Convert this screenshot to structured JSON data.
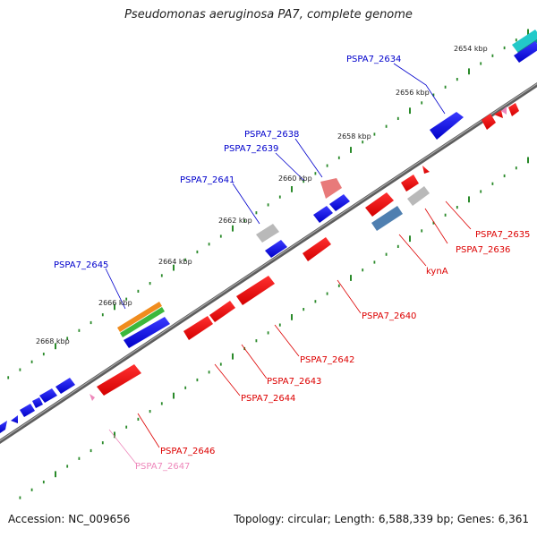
{
  "title": "Pseudomonas aeruginosa PA7, complete genome",
  "footer": {
    "accession": "Accession: NC_009656",
    "summary": "Topology: circular; Length: 6,588,339 bp; Genes: 6,361"
  },
  "colors": {
    "backbone": "#7a7a7a",
    "tick": "#2a8a2a",
    "forward_label": "#0000cc",
    "reverse_label": "#dd0000",
    "pseudo_label": "#ee88bb"
  },
  "ruler": [
    {
      "label": "2654 kbp"
    },
    {
      "label": "2656 kbp"
    },
    {
      "label": "2658 kbp"
    },
    {
      "label": "2660 kbp"
    },
    {
      "label": "2662 kbp"
    },
    {
      "label": "2664 kbp"
    },
    {
      "label": "2666 kbp"
    },
    {
      "label": "2668 kbp"
    }
  ],
  "gene_labels": [
    {
      "text": "PSPA7_2634",
      "strand": "forward"
    },
    {
      "text": "PSPA7_2638",
      "strand": "forward"
    },
    {
      "text": "PSPA7_2639",
      "strand": "forward"
    },
    {
      "text": "PSPA7_2641",
      "strand": "forward"
    },
    {
      "text": "PSPA7_2645",
      "strand": "forward"
    },
    {
      "text": "PSPA7_2635",
      "strand": "reverse"
    },
    {
      "text": "PSPA7_2636",
      "strand": "reverse"
    },
    {
      "text": "kynA",
      "strand": "reverse"
    },
    {
      "text": "PSPA7_2640",
      "strand": "reverse"
    },
    {
      "text": "PSPA7_2642",
      "strand": "reverse"
    },
    {
      "text": "PSPA7_2643",
      "strand": "reverse"
    },
    {
      "text": "PSPA7_2644",
      "strand": "reverse"
    },
    {
      "text": "PSPA7_2646",
      "strand": "reverse"
    },
    {
      "text": "PSPA7_2647",
      "strand": "pseudo"
    }
  ]
}
